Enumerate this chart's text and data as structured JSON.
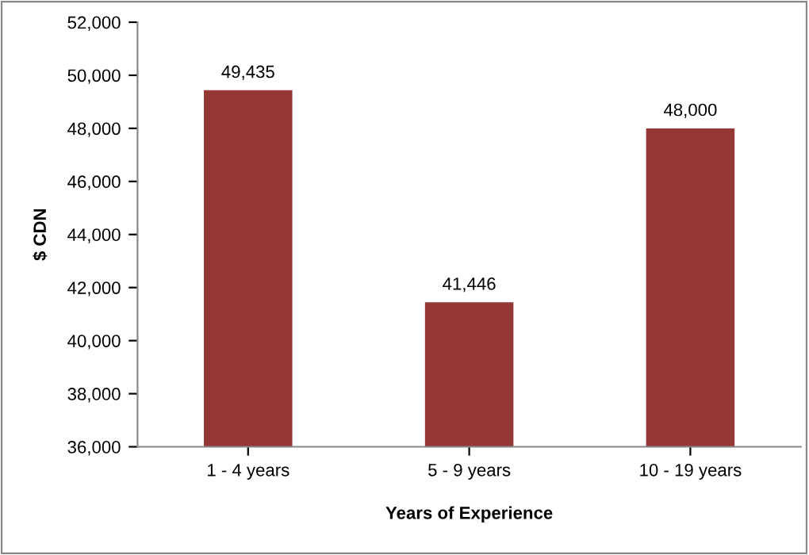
{
  "chart_data": {
    "type": "bar",
    "categories": [
      "1 - 4 years",
      "5 - 9 years",
      "10 - 19 years"
    ],
    "values": [
      49435,
      41446,
      48000
    ],
    "value_labels": [
      "49,435",
      "41,446",
      "48,000"
    ],
    "color": "#953735",
    "xlabel": "Years of Experience",
    "ylabel": "$ CDN",
    "ylim": [
      36000,
      52000
    ],
    "yticks": [
      {
        "value": 36000,
        "label": "36,000"
      },
      {
        "value": 38000,
        "label": "38,000"
      },
      {
        "value": 40000,
        "label": "40,000"
      },
      {
        "value": 42000,
        "label": "42,000"
      },
      {
        "value": 44000,
        "label": "44,000"
      },
      {
        "value": 46000,
        "label": "46,000"
      },
      {
        "value": 48000,
        "label": "48,000"
      },
      {
        "value": 50000,
        "label": "50,000"
      },
      {
        "value": 52000,
        "label": "52,000"
      }
    ],
    "grid": false,
    "legend": false
  }
}
